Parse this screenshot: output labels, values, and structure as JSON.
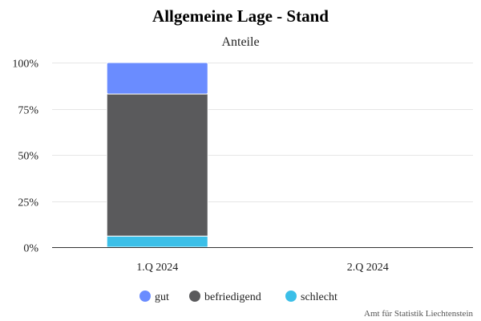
{
  "chart_data": {
    "type": "bar",
    "stacked": true,
    "title": "Allgemeine Lage - Stand",
    "subtitle": "Anteile",
    "categories": [
      "1.Q 2024",
      "2.Q 2024"
    ],
    "series": [
      {
        "name": "gut",
        "color": "#6a8cff",
        "values": [
          17,
          null
        ]
      },
      {
        "name": "befriedigend",
        "color": "#5a5a5c",
        "values": [
          77,
          null
        ]
      },
      {
        "name": "schlecht",
        "color": "#3bbfe8",
        "values": [
          6,
          null
        ]
      }
    ],
    "ylim": [
      0,
      100
    ],
    "yticks": [
      "0%",
      "25%",
      "50%",
      "75%",
      "100%"
    ],
    "grid": true,
    "legend_position": "bottom",
    "credit": "Amt für Statistik Liechtenstein"
  }
}
